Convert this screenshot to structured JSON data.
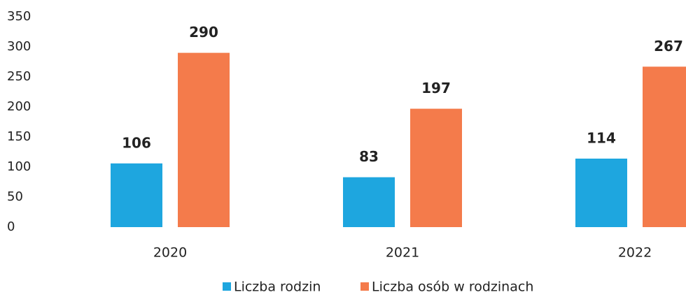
{
  "chart_data": {
    "type": "bar",
    "categories": [
      "2020",
      "2021",
      "2022"
    ],
    "series": [
      {
        "name": "Liczba rodzin",
        "color": "#1ea6df",
        "values": [
          106,
          83,
          114
        ]
      },
      {
        "name": "Liczba osób w rodzinach",
        "color": "#f47b4b",
        "values": [
          290,
          197,
          267
        ]
      }
    ],
    "ylim": [
      0,
      350
    ],
    "yticks": [
      0,
      50,
      100,
      150,
      200,
      250,
      300,
      350
    ],
    "grid": false,
    "legend": "bottom"
  }
}
